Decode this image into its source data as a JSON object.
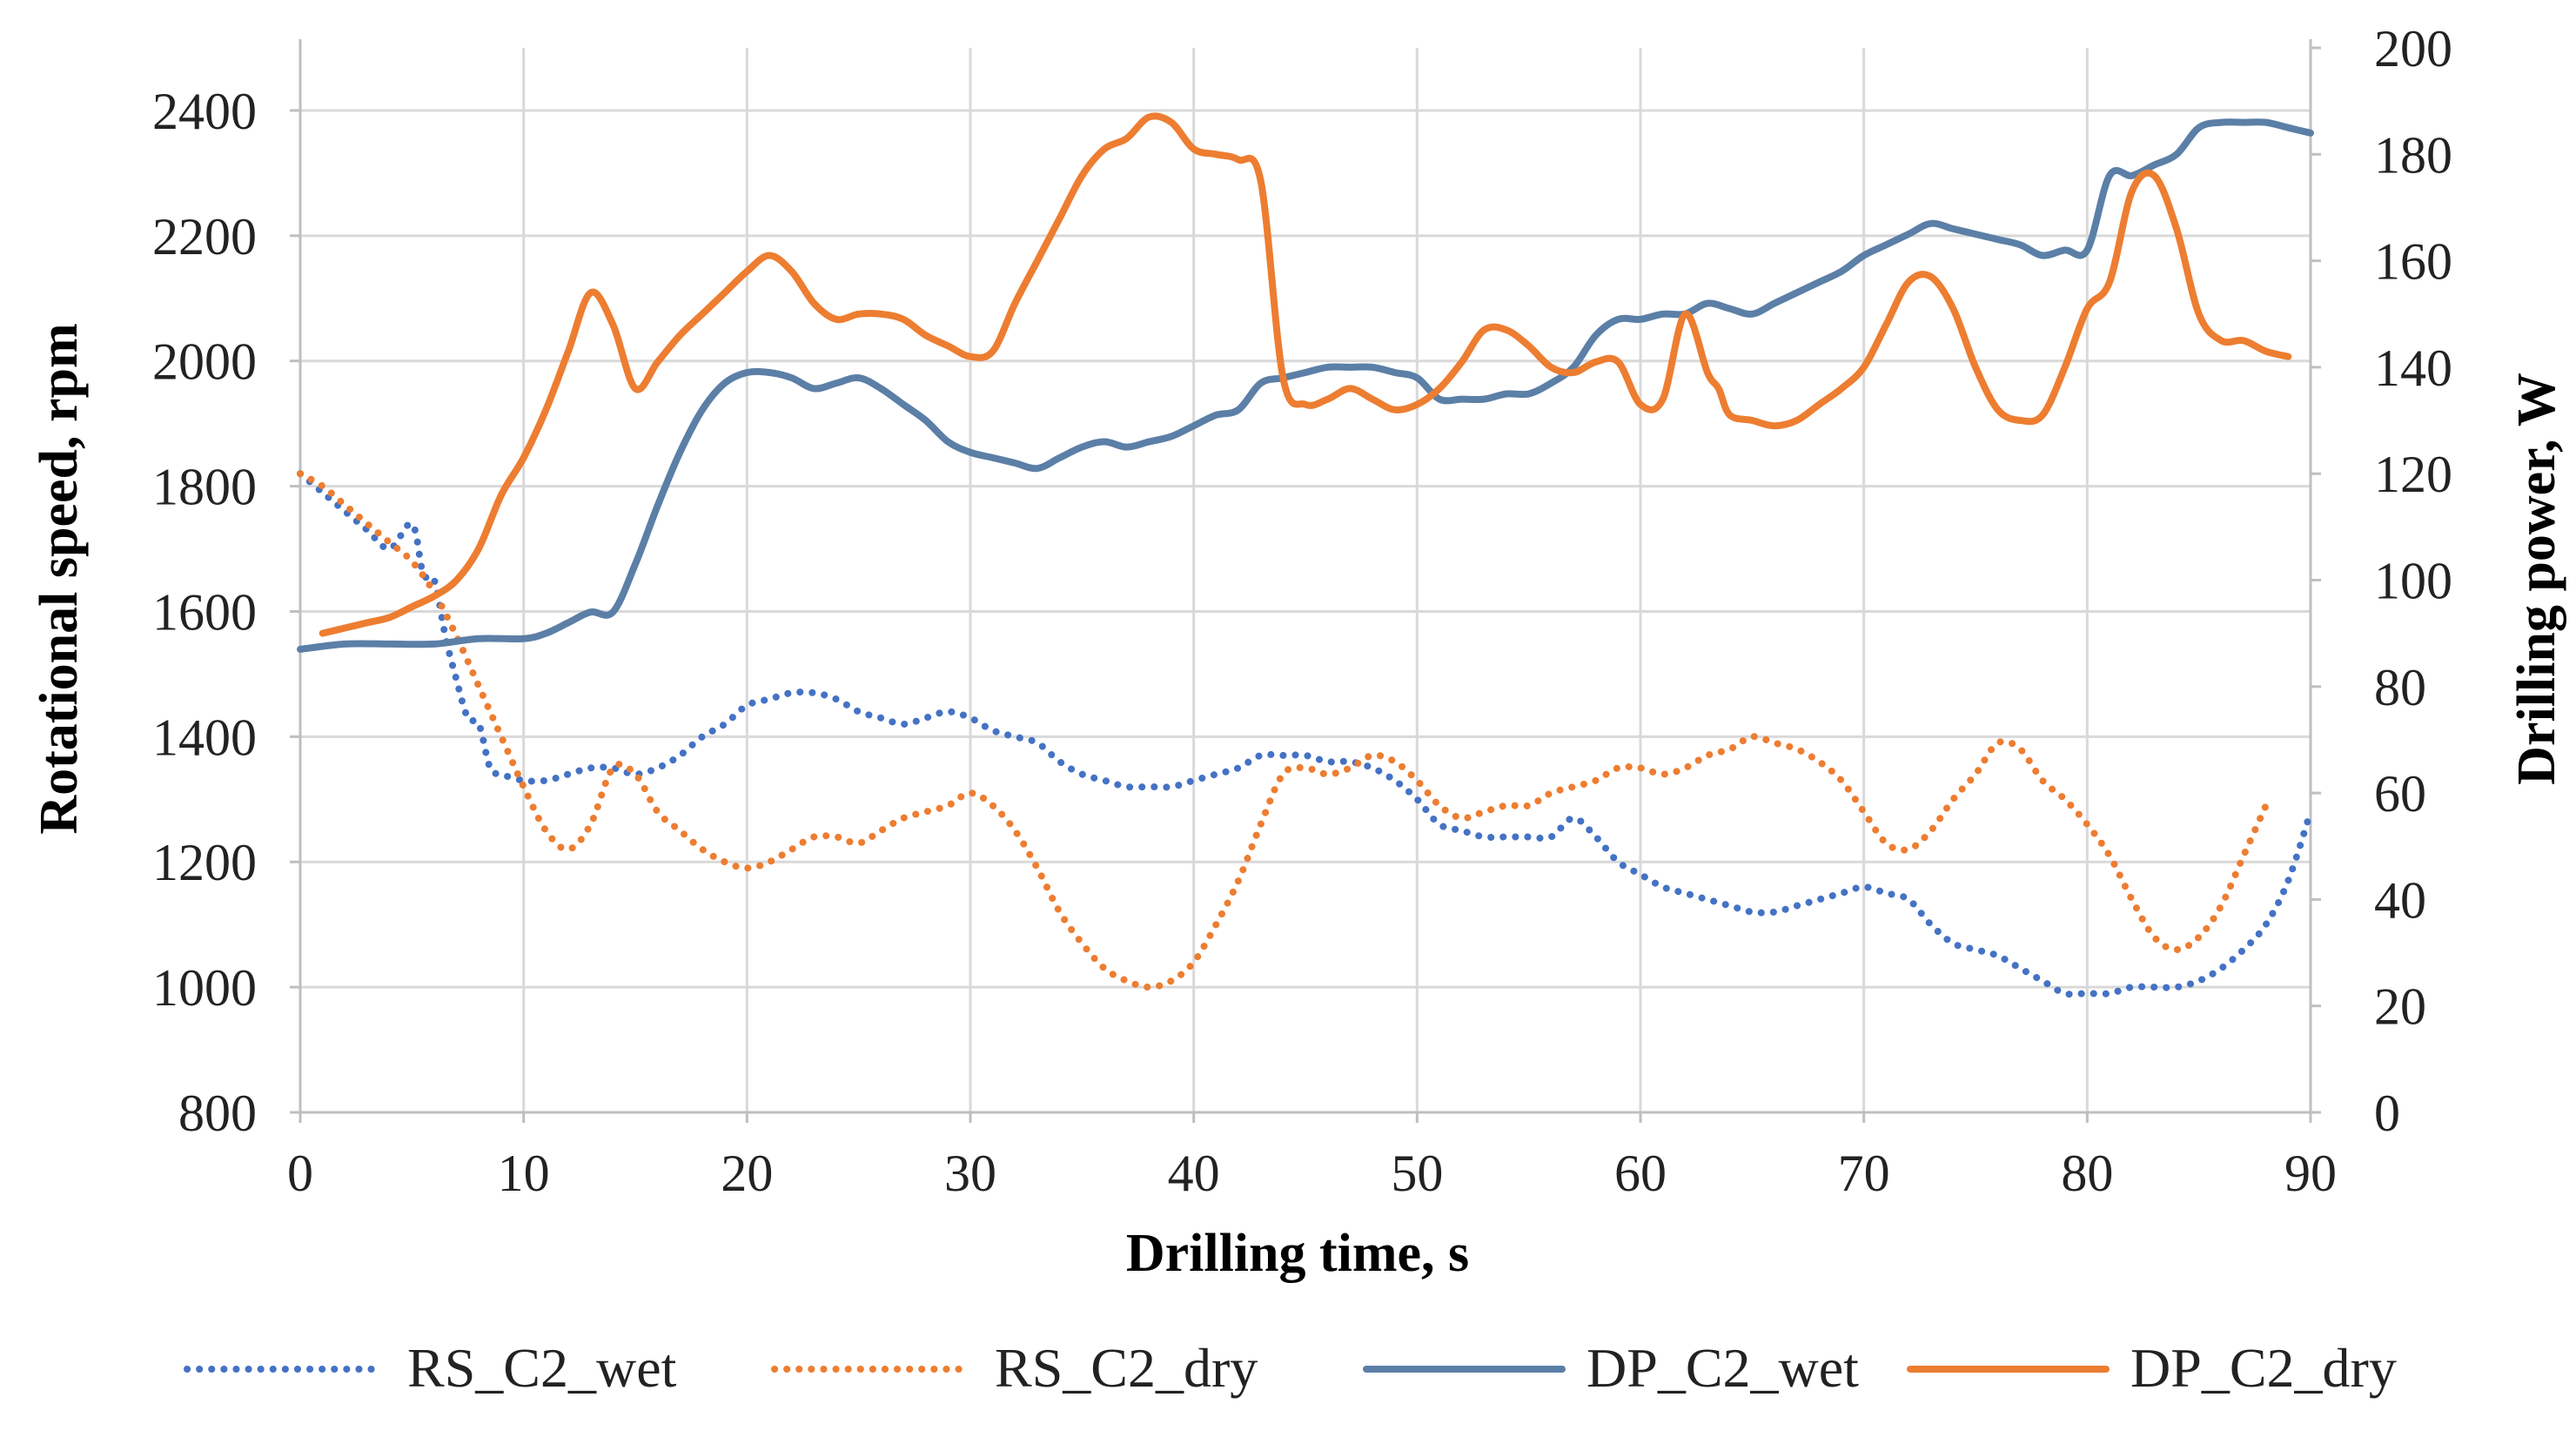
{
  "chart_data": {
    "type": "line",
    "title": "",
    "xlabel": "Drilling time, s",
    "ylabel_left": "Rotational speed, rpm",
    "ylabel_right": "Drilling power, W",
    "xlim": [
      0,
      90
    ],
    "ylim_left": [
      800,
      2500
    ],
    "ylim_right": [
      0,
      200
    ],
    "x_ticks": [
      0,
      10,
      20,
      30,
      40,
      50,
      60,
      70,
      80,
      90
    ],
    "y_left_ticks": [
      800,
      1000,
      1200,
      1400,
      1600,
      1800,
      2000,
      2200,
      2400
    ],
    "y_right_ticks": [
      0,
      20,
      40,
      60,
      80,
      100,
      120,
      140,
      160,
      180,
      200
    ],
    "grid": true,
    "legend_position": "bottom",
    "colors": {
      "blue": "#4472c4",
      "orange": "#ed7d31",
      "steel": "#5b7fa6",
      "grid": "#d9d9d9",
      "axis": "#bfbfbf"
    },
    "series": [
      {
        "name": "RS_C2_wet",
        "axis": "left",
        "style": "dotted",
        "color": "#4472c4",
        "x": [
          0,
          1,
          2,
          3,
          4,
          5,
          5.5,
          6,
          6.5,
          7,
          7.5,
          8,
          8.5,
          9,
          10,
          11,
          12,
          13,
          14,
          15,
          16,
          17,
          18,
          19,
          20,
          21,
          22,
          23,
          24,
          25,
          26,
          27,
          28,
          29,
          30,
          31,
          32,
          33,
          34,
          35,
          36,
          37,
          38,
          39,
          40,
          41,
          42,
          43,
          44,
          45,
          46,
          47,
          48,
          49,
          50,
          51,
          52,
          53,
          54,
          55,
          56,
          57,
          58,
          59,
          60,
          61,
          62,
          63,
          64,
          65,
          66,
          67,
          68,
          69,
          70,
          71,
          72,
          73,
          74,
          75,
          76,
          77,
          78,
          79,
          80,
          81,
          82,
          83,
          84,
          85,
          86,
          87,
          88,
          89,
          90
        ],
        "values": [
          1820,
          1790,
          1760,
          1730,
          1700,
          1740,
          1660,
          1650,
          1560,
          1490,
          1430,
          1420,
          1350,
          1340,
          1330,
          1330,
          1340,
          1350,
          1350,
          1340,
          1350,
          1370,
          1400,
          1420,
          1450,
          1460,
          1470,
          1470,
          1460,
          1440,
          1430,
          1420,
          1430,
          1440,
          1430,
          1410,
          1400,
          1390,
          1360,
          1340,
          1330,
          1320,
          1320,
          1320,
          1330,
          1340,
          1350,
          1370,
          1370,
          1370,
          1360,
          1360,
          1350,
          1330,
          1300,
          1260,
          1250,
          1240,
          1240,
          1240,
          1240,
          1270,
          1240,
          1200,
          1180,
          1160,
          1150,
          1140,
          1130,
          1120,
          1120,
          1130,
          1140,
          1150,
          1160,
          1150,
          1140,
          1100,
          1070,
          1060,
          1050,
          1030,
          1010,
          990,
          990,
          990,
          1000,
          1000,
          1000,
          1010,
          1030,
          1060,
          1100,
          1170,
          1280
        ]
      },
      {
        "name": "RS_C2_dry",
        "axis": "left",
        "style": "dotted",
        "color": "#ed7d31",
        "x": [
          0,
          1,
          2,
          3,
          4,
          5,
          6,
          7,
          8,
          9,
          10,
          11,
          12,
          13,
          14,
          15,
          16,
          17,
          18,
          19,
          20,
          21,
          22,
          23,
          24,
          25,
          26,
          27,
          28,
          29,
          30,
          31,
          32,
          33,
          34,
          35,
          36,
          37,
          38,
          39,
          40,
          41,
          42,
          43,
          44,
          45,
          46,
          47,
          48,
          49,
          50,
          51,
          52,
          53,
          54,
          55,
          56,
          57,
          58,
          59,
          60,
          61,
          62,
          63,
          64,
          65,
          66,
          67,
          68,
          69,
          70,
          71,
          72,
          73,
          74,
          75,
          76,
          77,
          78,
          79,
          80,
          81,
          82,
          83,
          84,
          85,
          86,
          87,
          88
        ],
        "values": [
          1820,
          1800,
          1770,
          1740,
          1710,
          1680,
          1630,
          1560,
          1480,
          1400,
          1320,
          1250,
          1220,
          1260,
          1350,
          1340,
          1280,
          1250,
          1220,
          1200,
          1190,
          1200,
          1220,
          1240,
          1240,
          1230,
          1250,
          1270,
          1280,
          1290,
          1310,
          1290,
          1250,
          1190,
          1120,
          1070,
          1030,
          1010,
          1000,
          1010,
          1040,
          1100,
          1170,
          1260,
          1340,
          1350,
          1340,
          1350,
          1370,
          1360,
          1330,
          1290,
          1270,
          1280,
          1290,
          1290,
          1310,
          1320,
          1330,
          1350,
          1350,
          1340,
          1350,
          1370,
          1380,
          1400,
          1390,
          1380,
          1360,
          1330,
          1280,
          1230,
          1220,
          1250,
          1300,
          1340,
          1390,
          1380,
          1330,
          1300,
          1260,
          1210,
          1140,
          1080,
          1060,
          1080,
          1130,
          1210,
          1290
        ]
      },
      {
        "name": "DP_C2_wet",
        "axis": "right",
        "style": "solid",
        "color": "#5b7fa6",
        "x": [
          0,
          2,
          4,
          6,
          8,
          10,
          11,
          12,
          13,
          14,
          15,
          16,
          17,
          18,
          19,
          20,
          21,
          22,
          23,
          24,
          25,
          26,
          27,
          28,
          29,
          30,
          31,
          32,
          33,
          34,
          35,
          36,
          37,
          38,
          39,
          40,
          41,
          42,
          43,
          44,
          45,
          46,
          47,
          48,
          49,
          50,
          51,
          52,
          53,
          54,
          55,
          56,
          57,
          58,
          59,
          60,
          61,
          62,
          63,
          64,
          65,
          66,
          67,
          68,
          69,
          70,
          71,
          72,
          73,
          74,
          75,
          76,
          77,
          78,
          79,
          80,
          81,
          82,
          83,
          84,
          85,
          86,
          87,
          88,
          89,
          90
        ],
        "values": [
          87,
          88,
          88,
          88,
          89,
          89,
          90,
          92,
          94,
          94,
          103,
          114,
          124,
          132,
          137,
          139,
          139,
          138,
          136,
          137,
          138,
          136,
          133,
          130,
          126,
          124,
          123,
          122,
          121,
          123,
          125,
          126,
          125,
          126,
          127,
          129,
          131,
          132,
          137,
          138,
          139,
          140,
          140,
          140,
          139,
          138,
          134,
          134,
          134,
          135,
          135,
          137,
          140,
          146,
          149,
          149,
          150,
          150,
          152,
          151,
          150,
          152,
          154,
          156,
          158,
          161,
          163,
          165,
          167,
          166,
          165,
          164,
          163,
          161,
          162,
          162,
          176,
          176,
          178,
          180,
          185,
          186,
          186,
          186,
          185,
          184
        ]
      },
      {
        "name": "DP_C2_dry",
        "axis": "right",
        "style": "solid",
        "color": "#ed7d31",
        "x": [
          1,
          2,
          3,
          4,
          5,
          6,
          7,
          8,
          9,
          10,
          11,
          12,
          13,
          14,
          15,
          16,
          17,
          18,
          19,
          20,
          21,
          22,
          23,
          24,
          25,
          26,
          27,
          28,
          29,
          30,
          31,
          32,
          33,
          34,
          35,
          36,
          37,
          38,
          39,
          40,
          41,
          42,
          43,
          44,
          45,
          46,
          47,
          48,
          49,
          50,
          51,
          52,
          53,
          54,
          55,
          56,
          57,
          58,
          59,
          60,
          61,
          62,
          63,
          63.5,
          64,
          65,
          66,
          67,
          68,
          69,
          70,
          71,
          72,
          73,
          74,
          75,
          76,
          77,
          78,
          79,
          80,
          81,
          82,
          83,
          84,
          85,
          86,
          87,
          88,
          89
        ],
        "values": [
          90,
          91,
          92,
          93,
          95,
          97,
          100,
          106,
          116,
          123,
          132,
          143,
          154,
          148,
          136,
          141,
          146,
          150,
          154,
          158,
          161,
          158,
          152,
          149,
          150,
          150,
          149,
          146,
          144,
          142,
          143,
          152,
          160,
          168,
          176,
          181,
          183,
          187,
          186,
          181,
          180,
          179,
          175,
          138,
          133,
          134,
          136,
          134,
          132,
          133,
          136,
          141,
          147,
          147,
          144,
          140,
          139,
          141,
          141,
          133,
          134,
          150,
          139,
          136,
          131,
          130,
          129,
          130,
          133,
          136,
          140,
          148,
          156,
          157,
          151,
          140,
          132,
          130,
          131,
          140,
          151,
          156,
          173,
          176,
          166,
          150,
          145,
          145,
          143,
          142
        ]
      }
    ]
  }
}
